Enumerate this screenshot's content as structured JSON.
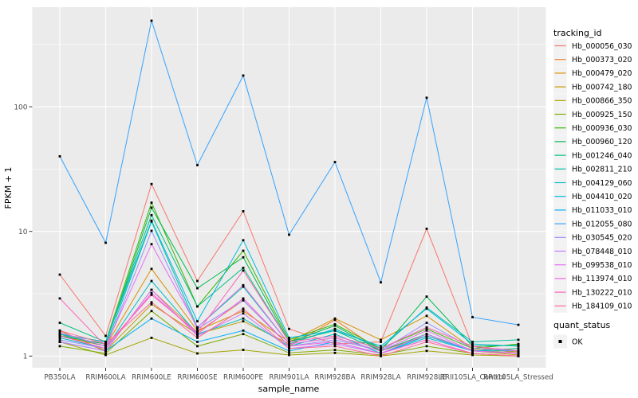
{
  "chart_data": {
    "type": "line",
    "title": "",
    "xlabel": "sample_name",
    "ylabel": "FPKM + 1",
    "y_scale": "log10",
    "y_ticks": [
      1,
      10,
      100
    ],
    "y_minor_ticks": [
      3.162,
      31.62,
      316.2
    ],
    "ylim": [
      0.95,
      620
    ],
    "grid": "on",
    "panel_bg": "#EBEBEB",
    "grid_color": "#FFFFFF",
    "tick_label_color": "#4D4D4D",
    "point_marker": "small-black-square",
    "point_color": "#000000",
    "legend_position": "right",
    "legend_title": "tracking_id",
    "legend_key_bg": "#F2F2F2",
    "legend2": {
      "title": "quant_status",
      "items": [
        {
          "label": "OK",
          "marker": "black-square"
        }
      ]
    },
    "categories": [
      "PB350LA",
      "RRIM600LA",
      "RRIM600LE",
      "RRIM600SE",
      "RRIM600PE",
      "RRIM901LA",
      "RRIM928BA",
      "RRIM928LA",
      "RRIM928LE",
      "RRII105LA_Control",
      "RRII105LA_Stressed"
    ],
    "series": [
      {
        "name": "Hb_000056_030",
        "color": "#F8766D",
        "values": [
          4.5,
          1.45,
          24,
          4.0,
          14.5,
          1.65,
          1.25,
          1.3,
          10.5,
          1.2,
          1.05
        ]
      },
      {
        "name": "Hb_000373_020",
        "color": "#EA8331",
        "values": [
          1.5,
          1.1,
          3.4,
          1.55,
          2.8,
          1.2,
          1.95,
          1.1,
          1.45,
          1.12,
          1.05
        ]
      },
      {
        "name": "Hb_000479_020",
        "color": "#D89000",
        "values": [
          1.45,
          1.2,
          5.0,
          1.6,
          2.3,
          1.3,
          2.0,
          1.35,
          2.1,
          1.15,
          1.08
        ]
      },
      {
        "name": "Hb_000742_180",
        "color": "#C09B00",
        "values": [
          1.6,
          1.1,
          2.6,
          1.5,
          1.9,
          1.25,
          1.4,
          1.1,
          1.5,
          1.1,
          1.02
        ]
      },
      {
        "name": "Hb_000866_350",
        "color": "#A3A500",
        "values": [
          1.3,
          1.02,
          1.4,
          1.05,
          1.12,
          1.02,
          1.06,
          1.0,
          1.1,
          1.02,
          1.0
        ]
      },
      {
        "name": "Hb_000925_150",
        "color": "#7CAE00",
        "values": [
          1.2,
          1.05,
          2.3,
          1.2,
          1.5,
          1.06,
          1.12,
          1.02,
          1.2,
          1.05,
          1.0
        ]
      },
      {
        "name": "Hb_000936_030",
        "color": "#39B600",
        "values": [
          1.5,
          1.3,
          17.0,
          2.5,
          7.0,
          1.35,
          1.8,
          1.15,
          1.65,
          1.15,
          1.25
        ]
      },
      {
        "name": "Hb_000960_120",
        "color": "#00BB4E",
        "values": [
          1.45,
          1.25,
          15.5,
          3.5,
          6.2,
          1.3,
          1.75,
          1.1,
          3.0,
          1.2,
          1.22
        ]
      },
      {
        "name": "Hb_001246_040",
        "color": "#00BF7D",
        "values": [
          1.85,
          1.3,
          13.5,
          2.5,
          5.1,
          1.3,
          1.6,
          1.1,
          1.5,
          1.1,
          1.15
        ]
      },
      {
        "name": "Hb_002811_210",
        "color": "#00C1A3",
        "values": [
          1.5,
          1.2,
          12.0,
          1.7,
          3.6,
          1.25,
          1.65,
          1.15,
          2.45,
          1.3,
          1.35
        ]
      },
      {
        "name": "Hb_004129_060",
        "color": "#00BFC4",
        "values": [
          1.4,
          1.15,
          4.0,
          1.5,
          2.0,
          1.2,
          1.5,
          1.05,
          1.4,
          1.1,
          1.1
        ]
      },
      {
        "name": "Hb_004410_020",
        "color": "#00BAE0",
        "values": [
          1.5,
          1.3,
          12.2,
          1.9,
          8.5,
          1.4,
          1.6,
          1.2,
          2.4,
          1.25,
          1.2
        ]
      },
      {
        "name": "Hb_011033_010",
        "color": "#00B0F6",
        "values": [
          1.3,
          1.1,
          2.0,
          1.3,
          1.6,
          1.1,
          1.3,
          1.05,
          1.45,
          1.1,
          1.05
        ]
      },
      {
        "name": "Hb_012055_080",
        "color": "#35A2FF",
        "values": [
          40,
          8.1,
          490,
          34,
          178,
          9.4,
          36,
          3.9,
          118,
          2.05,
          1.78
        ]
      },
      {
        "name": "Hb_030545_020",
        "color": "#9590FF",
        "values": [
          1.35,
          1.15,
          10.1,
          1.65,
          2.8,
          1.2,
          1.35,
          1.1,
          1.85,
          1.15,
          1.1
        ]
      },
      {
        "name": "Hb_078448_010",
        "color": "#C77CFF",
        "values": [
          1.3,
          1.1,
          3.4,
          1.45,
          2.2,
          1.15,
          1.25,
          1.05,
          1.5,
          1.1,
          1.05
        ]
      },
      {
        "name": "Hb_099538_010",
        "color": "#E76BF3",
        "values": [
          1.55,
          1.2,
          7.9,
          1.7,
          3.7,
          1.25,
          1.4,
          1.1,
          1.6,
          1.1,
          1.05
        ]
      },
      {
        "name": "Hb_113974_010",
        "color": "#FA62DB",
        "values": [
          1.45,
          1.15,
          3.2,
          1.5,
          2.9,
          1.2,
          1.3,
          1.05,
          1.35,
          1.05,
          1.0
        ]
      },
      {
        "name": "Hb_130222_010",
        "color": "#FF62BC",
        "values": [
          2.9,
          1.2,
          3.1,
          1.55,
          4.85,
          1.3,
          1.45,
          1.15,
          1.7,
          1.2,
          1.1
        ]
      },
      {
        "name": "Hb_184109_010",
        "color": "#FF6A98",
        "values": [
          1.6,
          1.25,
          2.7,
          1.4,
          2.4,
          1.15,
          1.2,
          1.0,
          1.3,
          1.05,
          1.0
        ]
      }
    ]
  }
}
